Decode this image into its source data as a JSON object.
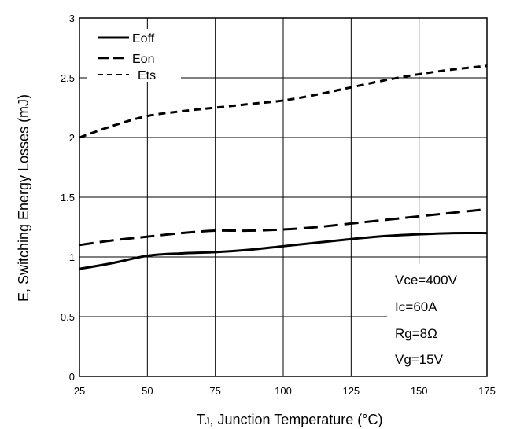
{
  "chart_data": {
    "type": "line",
    "xlabel_main": "T",
    "xlabel_sub": "J",
    "xlabel_rest": ", Junction Temperature (°C)",
    "ylabel": "E, Switching Energy Losses (mJ)",
    "xlim": [
      25,
      175
    ],
    "ylim": [
      0,
      3
    ],
    "xticks": [
      25,
      50,
      75,
      100,
      125,
      150,
      175
    ],
    "yticks": [
      0,
      0.5,
      1,
      1.5,
      2,
      2.5,
      3
    ],
    "xtick_labels": [
      "25",
      "50",
      "75",
      "100",
      "125",
      "150",
      "175"
    ],
    "ytick_labels": [
      "0",
      "0.5",
      "1",
      "1.5",
      "2",
      "2.5",
      "3"
    ],
    "grid": true,
    "legend_placement": "top-left",
    "series": [
      {
        "name": "Eoff",
        "style": "solid",
        "x": [
          25,
          37.5,
          50,
          62.5,
          75,
          87.5,
          100,
          112.5,
          125,
          137.5,
          150,
          162.5,
          175
        ],
        "values": [
          0.9,
          0.95,
          1.01,
          1.03,
          1.04,
          1.06,
          1.09,
          1.12,
          1.15,
          1.175,
          1.19,
          1.2,
          1.2
        ]
      },
      {
        "name": "Eon",
        "style": "dash",
        "x": [
          25,
          37.5,
          50,
          62.5,
          75,
          87.5,
          100,
          112.5,
          125,
          137.5,
          150,
          162.5,
          175
        ],
        "values": [
          1.1,
          1.14,
          1.17,
          1.2,
          1.22,
          1.22,
          1.23,
          1.25,
          1.28,
          1.31,
          1.34,
          1.37,
          1.4
        ]
      },
      {
        "name": "Ets",
        "style": "short-dash",
        "x": [
          25,
          37.5,
          50,
          62.5,
          75,
          87.5,
          100,
          112.5,
          125,
          137.5,
          150,
          162.5,
          175
        ],
        "values": [
          2.0,
          2.1,
          2.18,
          2.22,
          2.25,
          2.28,
          2.31,
          2.36,
          2.42,
          2.48,
          2.53,
          2.57,
          2.6
        ]
      }
    ],
    "conditions": {
      "vce": "Vce=400V",
      "ic_prefix": "I",
      "ic_sub": "C",
      "ic_rest": "=60A",
      "rg": "Rg=8Ω",
      "vg": "Vg=15V"
    }
  }
}
